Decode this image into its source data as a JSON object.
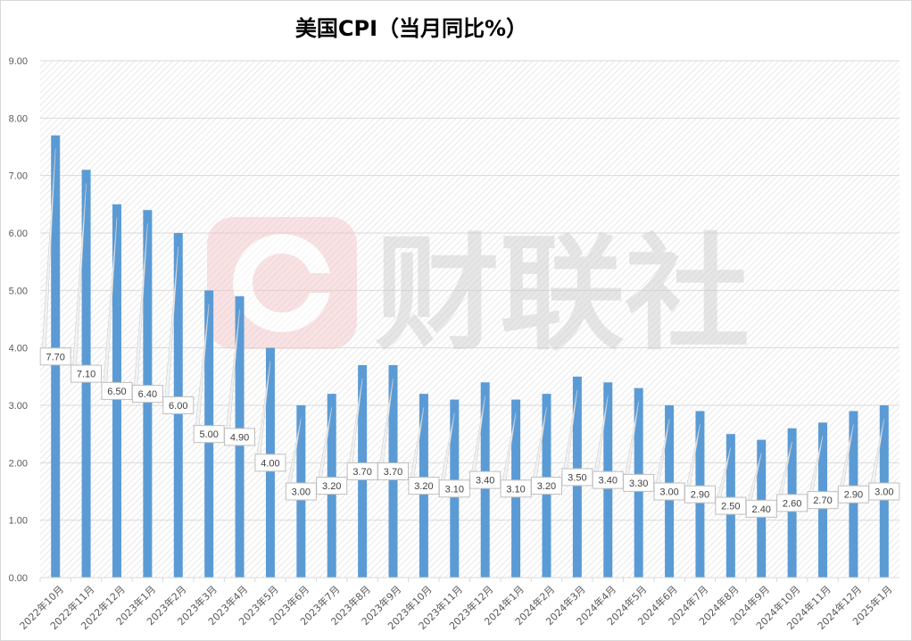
{
  "chart_data": {
    "type": "bar",
    "title": "美国CPI（当月同比%）",
    "categories": [
      "2022年10月",
      "2022年11月",
      "2022年12月",
      "2023年1月",
      "2023年2月",
      "2023年3月",
      "2023年4月",
      "2023年5月",
      "2023年6月",
      "2023年7月",
      "2023年8月",
      "2023年9月",
      "2023年10月",
      "2023年11月",
      "2023年12月",
      "2024年1月",
      "2024年2月",
      "2024年3月",
      "2024年4月",
      "2024年5月",
      "2024年6月",
      "2024年7月",
      "2024年8月",
      "2024年9月",
      "2024年10月",
      "2024年11月",
      "2024年12月",
      "2025年1月"
    ],
    "values": [
      7.7,
      7.1,
      6.5,
      6.4,
      6.0,
      5.0,
      4.9,
      4.0,
      3.0,
      3.2,
      3.7,
      3.7,
      3.2,
      3.1,
      3.4,
      3.1,
      3.2,
      3.5,
      3.4,
      3.3,
      3.0,
      2.9,
      2.5,
      2.4,
      2.6,
      2.7,
      2.9,
      3.0
    ],
    "ylim": [
      0,
      9
    ],
    "yticks": [
      "0.00",
      "1.00",
      "2.00",
      "3.00",
      "4.00",
      "5.00",
      "6.00",
      "7.00",
      "8.00",
      "9.00"
    ],
    "data_label_format": "2 decimals",
    "grid": true,
    "legend": "none",
    "colors": {
      "bar": "#5b9bd5",
      "grid": "#d9d9d9",
      "tick_label": "#595959"
    },
    "watermark": "财联社"
  }
}
